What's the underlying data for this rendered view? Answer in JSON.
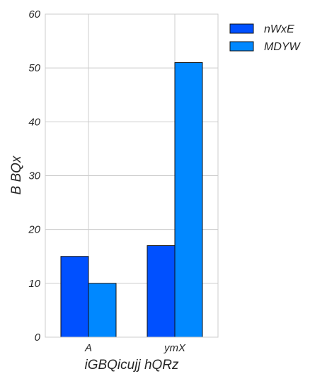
{
  "chart_data": {
    "type": "bar",
    "categories": [
      "A",
      "ymX"
    ],
    "series": [
      {
        "name": "nWxE",
        "values": [
          15,
          17
        ],
        "color": "#0050ff"
      },
      {
        "name": "MDYW",
        "values": [
          10,
          51
        ],
        "color": "#0088ff"
      }
    ],
    "xlabel": "iGBQicujj hQRz",
    "ylabel": "B BQx",
    "ylim": [
      0,
      60
    ],
    "yticks": [
      0,
      10,
      20,
      30,
      40,
      50,
      60
    ],
    "grid": true,
    "legend_position": "outside-top-right"
  }
}
